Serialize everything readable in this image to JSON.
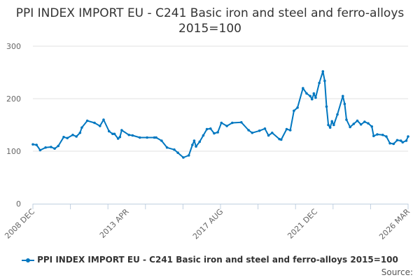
{
  "chart_data": {
    "type": "line",
    "title": "PPI INDEX IMPORT EU - C241 Basic iron and steel and ferro-alloys 2015=100",
    "xlabel": "",
    "ylabel": "",
    "ylim": [
      0,
      300
    ],
    "yticks": [
      "0",
      "100",
      "200",
      "300"
    ],
    "xlim": [
      "2008-12",
      "2026-03"
    ],
    "xticks": [
      {
        "date": "2008-12",
        "label": "2008 DEC"
      },
      {
        "date": "2013-04",
        "label": "2013 APR"
      },
      {
        "date": "2017-08",
        "label": "2017 AUG"
      },
      {
        "date": "2021-12",
        "label": "2021 DEC"
      },
      {
        "date": "2026-03",
        "label": "2026 MAR"
      }
    ],
    "grid": true,
    "legend_position": "bottom",
    "color": "#0077c0",
    "series": [
      {
        "name": "PPI INDEX IMPORT EU - C241 Basic iron and steel and ferro-alloys 2015=100",
        "points": [
          [
            "2008-12",
            113
          ],
          [
            "2009-02",
            112
          ],
          [
            "2009-04",
            102
          ],
          [
            "2009-07",
            107
          ],
          [
            "2009-10",
            108
          ],
          [
            "2009-12",
            105
          ],
          [
            "2010-02",
            110
          ],
          [
            "2010-05",
            127
          ],
          [
            "2010-07",
            125
          ],
          [
            "2010-10",
            131
          ],
          [
            "2010-12",
            128
          ],
          [
            "2011-02",
            135
          ],
          [
            "2011-03",
            145
          ],
          [
            "2011-06",
            158
          ],
          [
            "2011-10",
            154
          ],
          [
            "2012-01",
            148
          ],
          [
            "2012-03",
            160
          ],
          [
            "2012-06",
            138
          ],
          [
            "2012-08",
            133
          ],
          [
            "2012-09",
            133
          ],
          [
            "2012-11",
            124
          ],
          [
            "2012-12",
            127
          ],
          [
            "2013-01",
            140
          ],
          [
            "2013-05",
            131
          ],
          [
            "2013-07",
            130
          ],
          [
            "2013-11",
            126
          ],
          [
            "2014-03",
            126
          ],
          [
            "2014-07",
            126
          ],
          [
            "2014-08",
            126
          ],
          [
            "2014-11",
            120
          ],
          [
            "2015-02",
            107
          ],
          [
            "2015-06",
            103
          ],
          [
            "2015-08",
            97
          ],
          [
            "2015-11",
            88
          ],
          [
            "2016-02",
            92
          ],
          [
            "2016-04",
            112
          ],
          [
            "2016-05",
            120
          ],
          [
            "2016-06",
            109
          ],
          [
            "2016-08",
            118
          ],
          [
            "2016-10",
            130
          ],
          [
            "2016-12",
            142
          ],
          [
            "2017-02",
            143
          ],
          [
            "2017-04",
            134
          ],
          [
            "2017-06",
            136
          ],
          [
            "2017-08",
            154
          ],
          [
            "2017-11",
            148
          ],
          [
            "2018-02",
            154
          ],
          [
            "2018-07",
            155
          ],
          [
            "2018-11",
            140
          ],
          [
            "2019-01",
            135
          ],
          [
            "2019-05",
            139
          ],
          [
            "2019-08",
            143
          ],
          [
            "2019-10",
            130
          ],
          [
            "2019-12",
            135
          ],
          [
            "2020-04",
            123
          ],
          [
            "2020-05",
            122
          ],
          [
            "2020-08",
            142
          ],
          [
            "2020-10",
            140
          ],
          [
            "2020-12",
            177
          ],
          [
            "2021-02",
            183
          ],
          [
            "2021-05",
            220
          ],
          [
            "2021-07",
            210
          ],
          [
            "2021-09",
            205
          ],
          [
            "2021-10",
            199
          ],
          [
            "2021-11",
            210
          ],
          [
            "2021-12",
            202
          ],
          [
            "2022-02",
            230
          ],
          [
            "2022-04",
            252
          ],
          [
            "2022-05",
            234
          ],
          [
            "2022-06",
            185
          ],
          [
            "2022-07",
            150
          ],
          [
            "2022-08",
            145
          ],
          [
            "2022-09",
            157
          ],
          [
            "2022-10",
            150
          ],
          [
            "2022-12",
            170
          ],
          [
            "2023-03",
            205
          ],
          [
            "2023-04",
            190
          ],
          [
            "2023-05",
            160
          ],
          [
            "2023-07",
            146
          ],
          [
            "2023-09",
            152
          ],
          [
            "2023-11",
            158
          ],
          [
            "2024-01",
            151
          ],
          [
            "2024-03",
            156
          ],
          [
            "2024-05",
            153
          ],
          [
            "2024-07",
            147
          ],
          [
            "2024-08",
            129
          ],
          [
            "2024-10",
            132
          ],
          [
            "2025-01",
            131
          ],
          [
            "2025-03",
            128
          ],
          [
            "2025-05",
            115
          ],
          [
            "2025-07",
            114
          ],
          [
            "2025-09",
            121
          ],
          [
            "2025-11",
            120
          ],
          [
            "2025-12",
            117
          ],
          [
            "2026-02",
            120
          ],
          [
            "2026-03",
            128
          ]
        ]
      }
    ],
    "source_label": "Source:"
  }
}
